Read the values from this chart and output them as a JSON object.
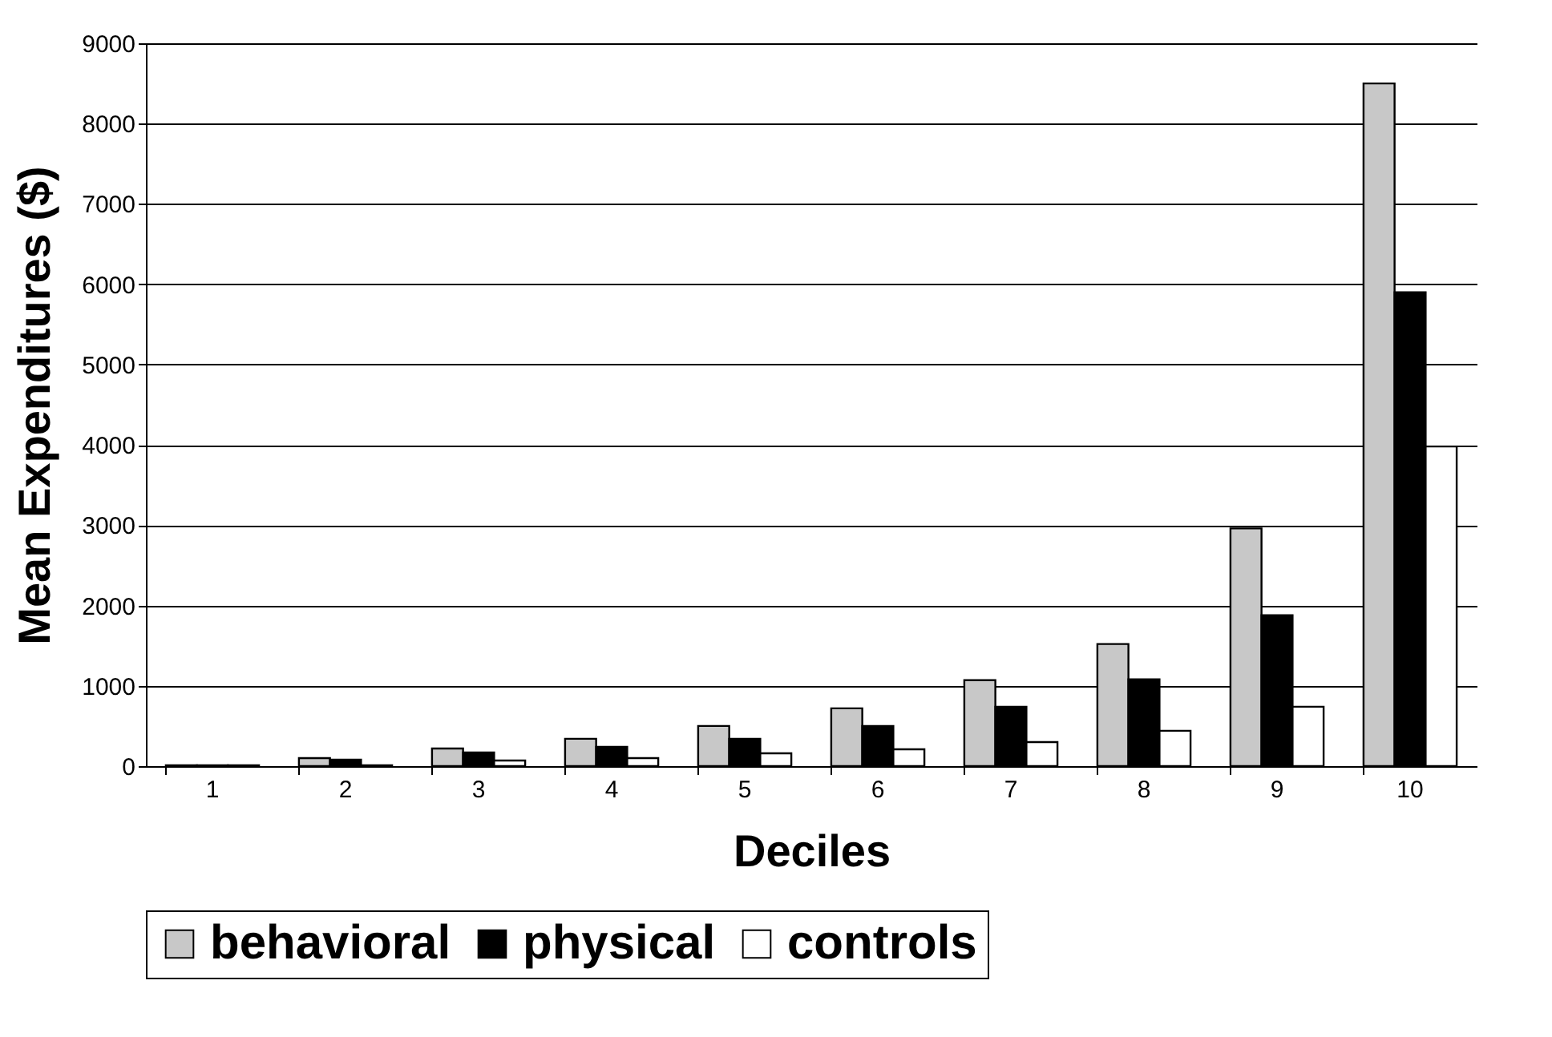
{
  "chart_data": {
    "type": "bar",
    "xlabel": "Deciles",
    "ylabel": "Mean Expenditures ($)",
    "categories": [
      "1",
      "2",
      "3",
      "4",
      "5",
      "6",
      "7",
      "8",
      "9",
      "10"
    ],
    "series": [
      {
        "name": "behavioral",
        "color": "#c8c8c8",
        "values": [
          10,
          100,
          220,
          340,
          500,
          720,
          1070,
          1520,
          2960,
          8500
        ]
      },
      {
        "name": "physical",
        "color": "#000000",
        "values": [
          10,
          80,
          170,
          240,
          340,
          500,
          740,
          1080,
          1880,
          5900
        ]
      },
      {
        "name": "controls",
        "color": "#ffffff",
        "values": [
          10,
          10,
          70,
          100,
          160,
          210,
          300,
          440,
          740,
          3980
        ]
      }
    ],
    "ylim": [
      0,
      9000
    ],
    "yticks": [
      0,
      1000,
      2000,
      3000,
      4000,
      5000,
      6000,
      7000,
      8000,
      9000
    ],
    "grid": "y",
    "legend": "bottom"
  }
}
